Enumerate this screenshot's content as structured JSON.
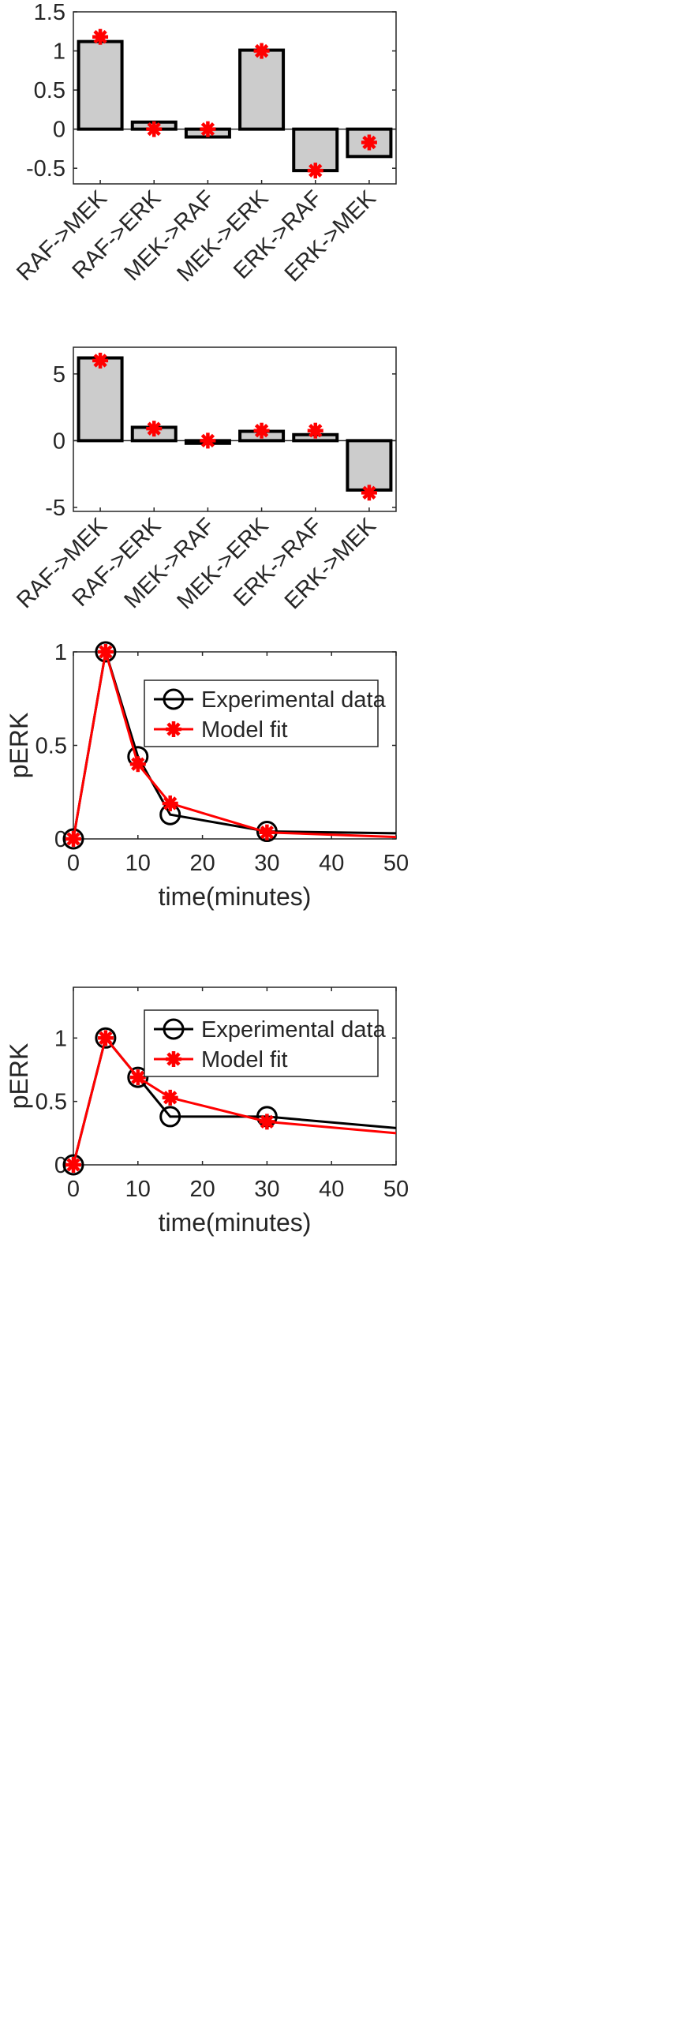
{
  "colors": {
    "bar_fill": "#cccccc",
    "bar_edge": "#000000",
    "axis": "#262626",
    "experimental": "#000000",
    "model": "#ff0000"
  },
  "chart_data": [
    {
      "type": "bar",
      "categories": [
        "RAF->MEK",
        "RAF->ERK",
        "MEK->RAF",
        "MEK->ERK",
        "ERK->RAF",
        "ERK->MEK"
      ],
      "values": [
        1.12,
        0.09,
        -0.1,
        1.01,
        -0.53,
        -0.35
      ],
      "markers": [
        1.18,
        0.0,
        0.0,
        1.0,
        -0.53,
        -0.17
      ],
      "ylim": [
        -0.7,
        1.5
      ],
      "yticks": [
        -0.5,
        0,
        0.5,
        1,
        1.5
      ],
      "ytick_labels": [
        "-0.5",
        "0",
        "0.5",
        "1",
        "1.5"
      ]
    },
    {
      "type": "bar",
      "categories": [
        "RAF->MEK",
        "RAF->ERK",
        "MEK->RAF",
        "MEK->ERK",
        "ERK->RAF",
        "ERK->MEK"
      ],
      "values": [
        6.2,
        1.0,
        -0.2,
        0.7,
        0.45,
        -3.7
      ],
      "markers": [
        6.0,
        0.9,
        0.0,
        0.75,
        0.75,
        -3.9
      ],
      "ylim": [
        -5.3,
        7
      ],
      "yticks": [
        -5,
        0,
        5
      ],
      "ytick_labels": [
        "-5",
        "0",
        "5"
      ]
    },
    {
      "type": "line",
      "xlabel": "time(minutes)",
      "ylabel": "pERK",
      "xlim": [
        0,
        50
      ],
      "ylim": [
        0,
        1
      ],
      "xticks": [
        0,
        10,
        20,
        30,
        40,
        50
      ],
      "xtick_labels": [
        "0",
        "10",
        "20",
        "30",
        "40",
        "50"
      ],
      "yticks": [
        0,
        0.5,
        1
      ],
      "ytick_labels": [
        "0",
        "0.5",
        "1"
      ],
      "legend_position": "top-right",
      "series": [
        {
          "name": "Experimental data",
          "marker": "circle",
          "x": [
            0,
            5,
            10,
            15,
            30,
            50
          ],
          "y": [
            0,
            1.0,
            0.44,
            0.13,
            0.04,
            0.03
          ],
          "marker_x": [
            0,
            5,
            10,
            15,
            30
          ]
        },
        {
          "name": "Model fit",
          "marker": "asterisk",
          "x": [
            0,
            5,
            10,
            15,
            30,
            50
          ],
          "y": [
            0,
            1.0,
            0.4,
            0.19,
            0.035,
            0.01
          ],
          "marker_x": [
            0,
            5,
            10,
            15,
            30
          ]
        }
      ]
    },
    {
      "type": "line",
      "xlabel": "time(minutes)",
      "ylabel": "pERK",
      "xlim": [
        0,
        50
      ],
      "ylim": [
        0,
        1.4
      ],
      "xticks": [
        0,
        10,
        20,
        30,
        40,
        50
      ],
      "xtick_labels": [
        "0",
        "10",
        "20",
        "30",
        "40",
        "50"
      ],
      "yticks": [
        0,
        0.5,
        1
      ],
      "ytick_labels": [
        "0",
        "0.5",
        "1"
      ],
      "legend_position": "top-right",
      "series": [
        {
          "name": "Experimental data",
          "marker": "circle",
          "x": [
            0,
            5,
            10,
            15,
            30,
            50
          ],
          "y": [
            0,
            1.0,
            0.69,
            0.38,
            0.38,
            0.29
          ],
          "marker_x": [
            0,
            5,
            10,
            15,
            30
          ]
        },
        {
          "name": "Model fit",
          "marker": "asterisk",
          "x": [
            0,
            5,
            10,
            15,
            30,
            50
          ],
          "y": [
            0,
            1.0,
            0.69,
            0.53,
            0.34,
            0.25
          ],
          "marker_x": [
            0,
            5,
            10,
            15,
            30
          ]
        }
      ]
    }
  ]
}
